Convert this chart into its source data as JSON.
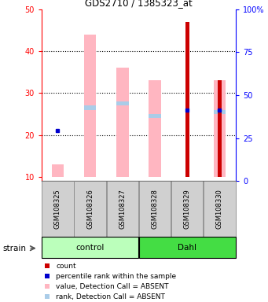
{
  "title": "GDS2710 / 1385323_at",
  "samples": [
    "GSM108325",
    "GSM108326",
    "GSM108327",
    "GSM108328",
    "GSM108329",
    "GSM108330"
  ],
  "ylim_left": [
    9,
    50
  ],
  "ylim_right": [
    0,
    100
  ],
  "yticks_left": [
    10,
    20,
    30,
    40,
    50
  ],
  "yticks_right": [
    0,
    25,
    50,
    75,
    100
  ],
  "ytick_right_labels": [
    "0",
    "25",
    "50",
    "75",
    "100%"
  ],
  "pink_bar_bottom": [
    10,
    10,
    10,
    10,
    0,
    10
  ],
  "pink_bar_top": [
    13,
    44,
    36,
    33,
    0,
    33
  ],
  "light_blue_bar_bottom": [
    0,
    26,
    27,
    24,
    0,
    25
  ],
  "light_blue_bar_top": [
    0,
    27,
    28,
    25,
    0,
    26
  ],
  "red_bar_bottom": [
    0,
    0,
    0,
    0,
    10,
    10
  ],
  "red_bar_top": [
    0,
    0,
    0,
    0,
    47,
    33
  ],
  "blue_dot_y": [
    21,
    0,
    0,
    0,
    26,
    26
  ],
  "colors": {
    "pink_bar": "#FFB6C1",
    "light_blue_bar": "#AACCE8",
    "red_bar": "#CC0000",
    "blue_dot": "#0000CC",
    "control_green_light": "#BBFFBB",
    "dahl_green": "#44DD44",
    "gray_bg": "#D0D0D0",
    "gray_border": "#888888"
  },
  "legend_items": [
    {
      "color": "#CC0000",
      "label": "count"
    },
    {
      "color": "#0000CC",
      "label": "percentile rank within the sample"
    },
    {
      "color": "#FFB6C1",
      "label": "value, Detection Call = ABSENT"
    },
    {
      "color": "#AACCE8",
      "label": "rank, Detection Call = ABSENT"
    }
  ]
}
